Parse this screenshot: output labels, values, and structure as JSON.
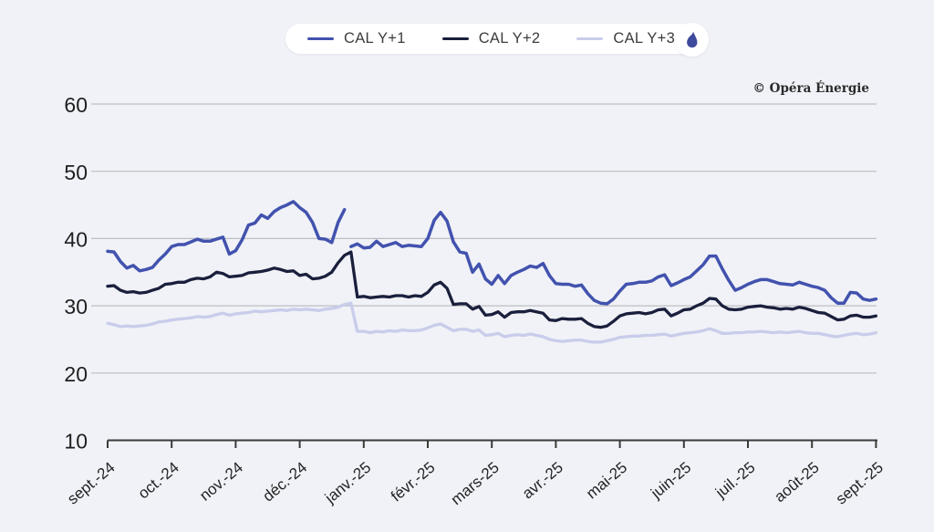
{
  "page": {
    "background": "#f0f2f7"
  },
  "attribution": "© Opéra Énergie",
  "legend": {
    "items": [
      {
        "label": "CAL Y+1",
        "color": "#4252ae"
      },
      {
        "label": "CAL Y+2",
        "color": "#1a1f3c"
      },
      {
        "label": "CAL Y+3",
        "color": "#c9cdea"
      }
    ],
    "brand_icon": "gas-flame-droplet",
    "brand_icon_color": "#3e4a9d"
  },
  "chart_data": {
    "type": "line",
    "title": "",
    "xlabel": "",
    "ylabel": "",
    "grid": "horizontal",
    "legend_position": "top-center",
    "ylim": [
      10,
      60
    ],
    "y_ticks": [
      10,
      20,
      30,
      40,
      50,
      60
    ],
    "x_tick_labels": [
      "sept.-24",
      "oct.-24",
      "nov.-24",
      "déc.-24",
      "janv.-25",
      "févr.-25",
      "mars-25",
      "avr.-25",
      "mai-25",
      "juin-25",
      "juil.-25",
      "août-25",
      "sept.-25"
    ],
    "x_range_months": [
      0,
      12
    ],
    "x_step_months": 0.1,
    "roll_note": "contract roll discontinuity at end of Dec 2024",
    "series": [
      {
        "name": "CAL Y+1",
        "color": "#4252ae",
        "width": 3.5,
        "gap_after_index": 37,
        "values": [
          38.1,
          38.0,
          36.6,
          35.6,
          36.0,
          35.2,
          35.4,
          35.7,
          36.8,
          37.7,
          38.8,
          39.1,
          39.1,
          39.5,
          39.9,
          39.6,
          39.6,
          39.9,
          40.2,
          37.7,
          38.2,
          39.8,
          42.0,
          42.3,
          43.5,
          43.0,
          44.0,
          44.6,
          45.0,
          45.5,
          44.6,
          43.9,
          42.4,
          40.0,
          39.9,
          39.4,
          42.4,
          44.3,
          38.8,
          39.2,
          38.6,
          38.7,
          39.6,
          38.8,
          39.1,
          39.4,
          38.8,
          39.0,
          38.9,
          38.8,
          40.0,
          42.7,
          43.9,
          42.6,
          39.5,
          38.0,
          37.8,
          35.0,
          36.2,
          34.0,
          33.2,
          34.5,
          33.3,
          34.5,
          35.0,
          35.4,
          35.9,
          35.7,
          36.3,
          34.5,
          33.3,
          33.2,
          33.2,
          32.9,
          33.1,
          31.8,
          30.8,
          30.4,
          30.3,
          31.0,
          32.2,
          33.2,
          33.3,
          33.5,
          33.5,
          33.7,
          34.3,
          34.6,
          33.0,
          33.4,
          33.9,
          34.3,
          35.2,
          36.1,
          37.4,
          37.4,
          35.5,
          33.8,
          32.3,
          32.7,
          33.2,
          33.6,
          33.9,
          33.9,
          33.6,
          33.3,
          33.2,
          33.1,
          33.5,
          33.2,
          32.9,
          32.7,
          32.3,
          31.2,
          30.4,
          30.4,
          32.0,
          31.9,
          31.0,
          30.8,
          31.0
        ]
      },
      {
        "name": "CAL Y+2",
        "color": "#1a1f3c",
        "width": 3.3,
        "values": [
          32.9,
          33.0,
          32.3,
          32.0,
          32.1,
          31.9,
          32.0,
          32.3,
          32.6,
          33.2,
          33.3,
          33.5,
          33.5,
          33.9,
          34.1,
          34.0,
          34.3,
          35.0,
          34.8,
          34.3,
          34.4,
          34.5,
          34.9,
          35.0,
          35.1,
          35.3,
          35.6,
          35.4,
          35.1,
          35.2,
          34.5,
          34.7,
          34.0,
          34.1,
          34.4,
          35.0,
          36.4,
          37.5,
          38.0,
          31.3,
          31.4,
          31.2,
          31.3,
          31.4,
          31.3,
          31.5,
          31.5,
          31.3,
          31.5,
          31.4,
          32.0,
          33.1,
          33.5,
          32.6,
          30.2,
          30.3,
          30.3,
          29.5,
          29.9,
          28.6,
          28.7,
          29.1,
          28.3,
          29.0,
          29.1,
          29.1,
          29.3,
          29.1,
          28.9,
          27.9,
          27.8,
          28.1,
          28.0,
          28.0,
          28.1,
          27.4,
          26.9,
          26.8,
          27.0,
          27.7,
          28.5,
          28.8,
          28.9,
          29.0,
          28.8,
          29.0,
          29.4,
          29.5,
          28.5,
          28.9,
          29.4,
          29.5,
          30.0,
          30.4,
          31.1,
          31.0,
          30.0,
          29.5,
          29.4,
          29.5,
          29.8,
          29.9,
          30.0,
          29.8,
          29.7,
          29.5,
          29.6,
          29.5,
          29.8,
          29.6,
          29.3,
          29.0,
          28.9,
          28.4,
          27.9,
          28.0,
          28.5,
          28.6,
          28.3,
          28.3,
          28.5
        ]
      },
      {
        "name": "CAL Y+3",
        "color": "#c9cdea",
        "width": 3.3,
        "values": [
          27.4,
          27.2,
          26.9,
          27.0,
          26.9,
          27.0,
          27.1,
          27.3,
          27.6,
          27.7,
          27.9,
          28.0,
          28.1,
          28.2,
          28.4,
          28.3,
          28.4,
          28.7,
          28.9,
          28.6,
          28.8,
          28.9,
          29.0,
          29.2,
          29.1,
          29.2,
          29.3,
          29.4,
          29.3,
          29.5,
          29.4,
          29.5,
          29.4,
          29.3,
          29.5,
          29.6,
          29.8,
          30.2,
          30.4,
          26.2,
          26.2,
          26.0,
          26.2,
          26.1,
          26.3,
          26.2,
          26.4,
          26.3,
          26.3,
          26.4,
          26.7,
          27.1,
          27.3,
          26.8,
          26.3,
          26.5,
          26.5,
          26.2,
          26.4,
          25.6,
          25.7,
          25.9,
          25.4,
          25.6,
          25.7,
          25.6,
          25.8,
          25.6,
          25.4,
          25.0,
          24.8,
          24.7,
          24.8,
          24.9,
          24.9,
          24.7,
          24.6,
          24.6,
          24.8,
          25.0,
          25.3,
          25.4,
          25.5,
          25.5,
          25.6,
          25.6,
          25.7,
          25.8,
          25.5,
          25.7,
          25.9,
          26.0,
          26.1,
          26.3,
          26.6,
          26.3,
          25.9,
          25.9,
          26.0,
          26.0,
          26.1,
          26.1,
          26.2,
          26.1,
          26.0,
          26.1,
          26.0,
          26.1,
          26.2,
          26.0,
          25.9,
          25.9,
          25.7,
          25.5,
          25.4,
          25.6,
          25.8,
          25.9,
          25.7,
          25.8,
          26.0
        ]
      }
    ]
  }
}
